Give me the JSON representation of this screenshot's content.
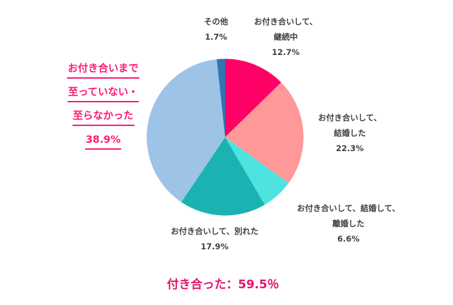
{
  "chart_data": {
    "type": "pie",
    "title": "",
    "start_angle_deg": 0,
    "direction": "clockwise",
    "center": [
      323,
      197
    ],
    "radius": 112.5,
    "slices": [
      {
        "label": "お付き合いして、継続中",
        "label_lines": [
          "お付き合いして、",
          "継続中"
        ],
        "value": 12.7,
        "display": "12.7%",
        "color": "#FF0066"
      },
      {
        "label": "お付き合いして、結婚した",
        "label_lines": [
          "お付き合いして、",
          "結婚した"
        ],
        "value": 22.3,
        "display": "22.3%",
        "color": "#FF9999"
      },
      {
        "label": "お付き合いして、結婚して、離婚した",
        "label_lines": [
          "お付き合いして、結婚して、",
          "離婚した"
        ],
        "value": 6.6,
        "display": "6.6%",
        "color": "#4DE4DF"
      },
      {
        "label": "お付き合いして、別れた",
        "label_lines": [
          "お付き合いして、別れた"
        ],
        "value": 17.9,
        "display": "17.9%",
        "color": "#1BB3B1"
      },
      {
        "label": "お付き合いまで至っていない・至らなかった",
        "label_lines": [
          "お付き合いまで",
          "至っていない・",
          "至らなかった"
        ],
        "value": 38.9,
        "display": "38.9%",
        "color": "#9DC3E6"
      },
      {
        "label": "その他",
        "label_lines": [
          "その他"
        ],
        "value": 1.7,
        "display": "1.7%",
        "color": "#2E75B6"
      }
    ],
    "annotations": [
      {
        "text": "付き合った：59.5％",
        "color": "#E8126E"
      }
    ]
  },
  "labels": {
    "continuing": {
      "line1": "お付き合いして、",
      "line2": "継続中",
      "value": "12.7%"
    },
    "married": {
      "line1": "お付き合いして、",
      "line2": "結婚した",
      "value": "22.3%"
    },
    "divorced": {
      "line1": "お付き合いして、結婚して、",
      "line2": "離婚した",
      "value": "6.6%"
    },
    "broke_up": {
      "line1": "お付き合いして、別れた",
      "value": "17.9%"
    },
    "other": {
      "line1": "その他",
      "value": "1.7%"
    }
  },
  "callout": {
    "line1": "お付き合いまで",
    "line2": "至っていない・",
    "line3": "至らなかった",
    "value": "38.9%",
    "color": "#FF1A75"
  },
  "total": {
    "text": "付き合った：59.5％"
  }
}
